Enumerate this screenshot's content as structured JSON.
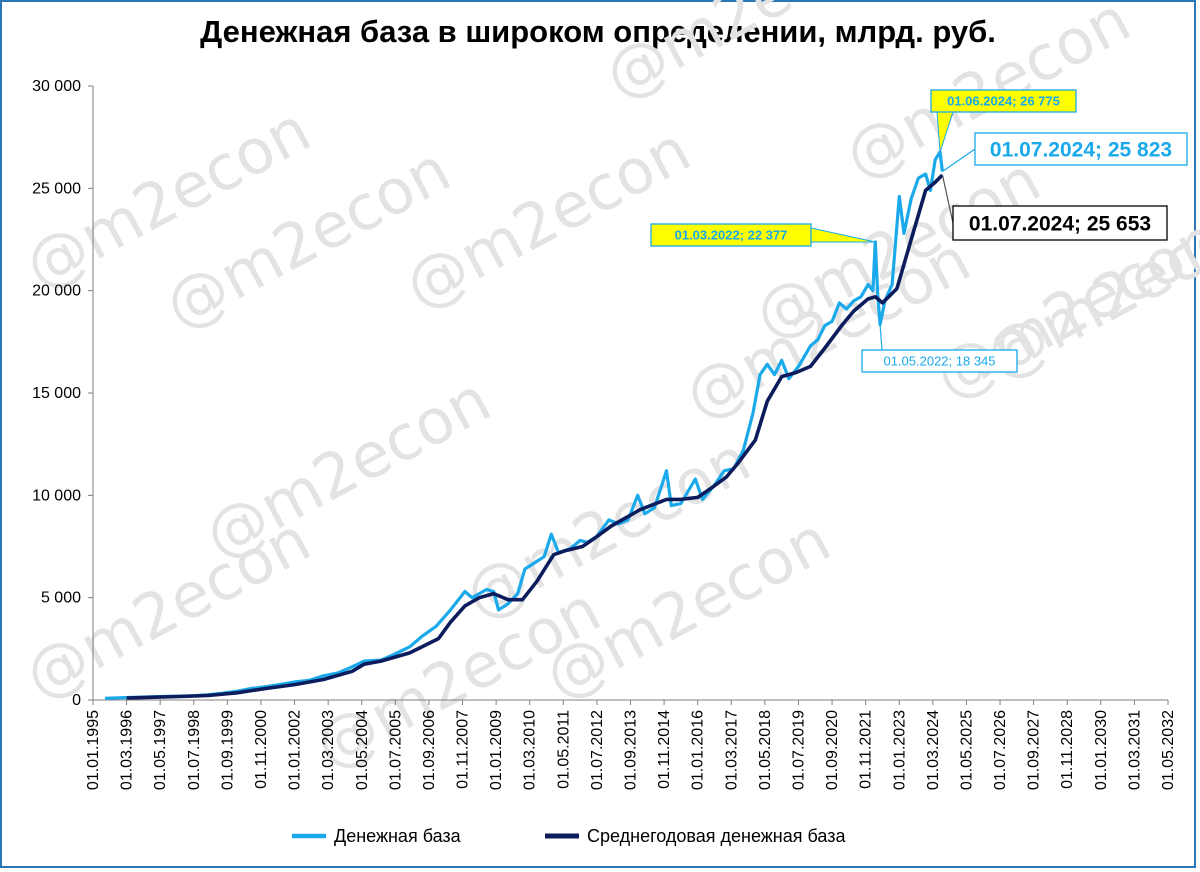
{
  "chart_data": {
    "type": "line",
    "title": "Денежная база в широком определении, млрд. руб.",
    "watermark": "@m2econ",
    "ylim": [
      0,
      30000
    ],
    "y_ticks": [
      "0",
      "5 000",
      "10 000",
      "15 000",
      "20 000",
      "25 000",
      "30 000"
    ],
    "x_ticks": [
      "01.01.1995",
      "01.03.1996",
      "01.05.1997",
      "01.07.1998",
      "01.09.1999",
      "01.11.2000",
      "01.01.2002",
      "01.03.2003",
      "01.05.2004",
      "01.07.2005",
      "01.09.2006",
      "01.11.2007",
      "01.01.2009",
      "01.03.2010",
      "01.05.2011",
      "01.07.2012",
      "01.09.2013",
      "01.11.2014",
      "01.01.2016",
      "01.03.2017",
      "01.05.2018",
      "01.07.2019",
      "01.09.2020",
      "01.11.2021",
      "01.01.2023",
      "01.03.2024",
      "01.05.2025",
      "01.07.2026",
      "01.09.2027",
      "01.11.2028",
      "01.01.2030",
      "01.03.2031",
      "01.05.2032"
    ],
    "x_range": [
      "1995-01-01",
      "2032-05-01"
    ],
    "grid": false,
    "legend_position": "bottom",
    "colors": {
      "base": "#1aa9ea",
      "average": "#0c1c5c",
      "highlight": "#ffff00"
    },
    "series": [
      {
        "name": "Денежная база",
        "points": [
          [
            "1995-06-01",
            80
          ],
          [
            "1996-01-01",
            110
          ],
          [
            "1996-06-01",
            130
          ],
          [
            "1997-01-01",
            150
          ],
          [
            "1997-06-01",
            170
          ],
          [
            "1998-01-01",
            190
          ],
          [
            "1998-07-01",
            210
          ],
          [
            "1999-01-01",
            260
          ],
          [
            "1999-07-01",
            330
          ],
          [
            "2000-01-01",
            430
          ],
          [
            "2000-07-01",
            560
          ],
          [
            "2001-01-01",
            650
          ],
          [
            "2001-07-01",
            760
          ],
          [
            "2002-01-01",
            880
          ],
          [
            "2002-07-01",
            960
          ],
          [
            "2003-01-01",
            1180
          ],
          [
            "2003-07-01",
            1320
          ],
          [
            "2004-01-01",
            1620
          ],
          [
            "2004-06-01",
            1900
          ],
          [
            "2005-01-01",
            1950
          ],
          [
            "2005-06-01",
            2200
          ],
          [
            "2006-01-01",
            2600
          ],
          [
            "2006-06-01",
            3100
          ],
          [
            "2006-12-01",
            3600
          ],
          [
            "2007-06-01",
            4400
          ],
          [
            "2007-12-01",
            5300
          ],
          [
            "2008-03-01",
            5000
          ],
          [
            "2008-06-01",
            5200
          ],
          [
            "2008-09-01",
            5400
          ],
          [
            "2008-12-01",
            5300
          ],
          [
            "2009-02-01",
            4400
          ],
          [
            "2009-06-01",
            4700
          ],
          [
            "2009-10-01",
            5200
          ],
          [
            "2010-01-01",
            6400
          ],
          [
            "2010-05-01",
            6700
          ],
          [
            "2010-09-01",
            7000
          ],
          [
            "2010-12-01",
            8100
          ],
          [
            "2011-03-01",
            7200
          ],
          [
            "2011-08-01",
            7400
          ],
          [
            "2011-12-01",
            7800
          ],
          [
            "2012-03-01",
            7700
          ],
          [
            "2012-07-01",
            8000
          ],
          [
            "2012-12-01",
            8800
          ],
          [
            "2013-04-01",
            8600
          ],
          [
            "2013-08-01",
            8800
          ],
          [
            "2013-12-01",
            10000
          ],
          [
            "2014-03-01",
            9100
          ],
          [
            "2014-07-01",
            9400
          ],
          [
            "2014-12-01",
            11200
          ],
          [
            "2015-02-01",
            9500
          ],
          [
            "2015-06-01",
            9600
          ],
          [
            "2015-12-01",
            10800
          ],
          [
            "2016-03-01",
            9800
          ],
          [
            "2016-08-01",
            10500
          ],
          [
            "2016-12-01",
            11200
          ],
          [
            "2017-04-01",
            11300
          ],
          [
            "2017-08-01",
            12200
          ],
          [
            "2017-12-01",
            14000
          ],
          [
            "2018-03-01",
            15900
          ],
          [
            "2018-06-01",
            16400
          ],
          [
            "2018-09-01",
            15900
          ],
          [
            "2018-12-01",
            16600
          ],
          [
            "2019-03-01",
            15700
          ],
          [
            "2019-07-01",
            16300
          ],
          [
            "2019-12-01",
            17300
          ],
          [
            "2020-03-01",
            17600
          ],
          [
            "2020-06-01",
            18300
          ],
          [
            "2020-09-01",
            18500
          ],
          [
            "2020-12-01",
            19400
          ],
          [
            "2021-03-01",
            19100
          ],
          [
            "2021-06-01",
            19500
          ],
          [
            "2021-09-01",
            19700
          ],
          [
            "2021-12-01",
            20300
          ],
          [
            "2022-02-01",
            20000
          ],
          [
            "2022-03-01",
            22377
          ],
          [
            "2022-04-01",
            19800
          ],
          [
            "2022-05-01",
            18345
          ],
          [
            "2022-07-01",
            19500
          ],
          [
            "2022-10-01",
            20300
          ],
          [
            "2023-01-01",
            24600
          ],
          [
            "2023-03-01",
            22800
          ],
          [
            "2023-06-01",
            24500
          ],
          [
            "2023-09-01",
            25500
          ],
          [
            "2023-12-01",
            25700
          ],
          [
            "2024-02-01",
            24900
          ],
          [
            "2024-04-01",
            26400
          ],
          [
            "2024-06-01",
            26775
          ],
          [
            "2024-07-01",
            25823
          ]
        ]
      },
      {
        "name": "Среднегодовая денежная база",
        "points": [
          [
            "1996-03-01",
            100
          ],
          [
            "1997-01-01",
            130
          ],
          [
            "1998-01-01",
            170
          ],
          [
            "1999-01-01",
            220
          ],
          [
            "2000-01-01",
            350
          ],
          [
            "2001-01-01",
            560
          ],
          [
            "2002-01-01",
            750
          ],
          [
            "2003-01-01",
            1000
          ],
          [
            "2004-01-01",
            1400
          ],
          [
            "2004-06-01",
            1750
          ],
          [
            "2005-01-01",
            1900
          ],
          [
            "2006-01-01",
            2300
          ],
          [
            "2007-01-01",
            3000
          ],
          [
            "2007-06-01",
            3800
          ],
          [
            "2007-12-01",
            4600
          ],
          [
            "2008-06-01",
            5000
          ],
          [
            "2008-12-01",
            5200
          ],
          [
            "2009-06-01",
            4900
          ],
          [
            "2009-12-01",
            4900
          ],
          [
            "2010-06-01",
            5800
          ],
          [
            "2011-01-01",
            7100
          ],
          [
            "2011-06-01",
            7300
          ],
          [
            "2012-01-01",
            7500
          ],
          [
            "2012-06-01",
            7900
          ],
          [
            "2013-01-01",
            8500
          ],
          [
            "2014-01-01",
            9300
          ],
          [
            "2014-12-01",
            9800
          ],
          [
            "2015-06-01",
            9800
          ],
          [
            "2016-01-01",
            9900
          ],
          [
            "2016-06-01",
            10300
          ],
          [
            "2017-01-01",
            10900
          ],
          [
            "2017-06-01",
            11600
          ],
          [
            "2018-01-01",
            12700
          ],
          [
            "2018-06-01",
            14600
          ],
          [
            "2018-12-01",
            15800
          ],
          [
            "2019-06-01",
            16000
          ],
          [
            "2019-12-01",
            16300
          ],
          [
            "2020-06-01",
            17200
          ],
          [
            "2021-01-01",
            18300
          ],
          [
            "2021-06-01",
            19000
          ],
          [
            "2021-12-01",
            19600
          ],
          [
            "2022-03-01",
            19700
          ],
          [
            "2022-06-01",
            19400
          ],
          [
            "2022-12-01",
            20100
          ],
          [
            "2023-06-01",
            22500
          ],
          [
            "2023-12-01",
            24900
          ],
          [
            "2024-04-01",
            25300
          ],
          [
            "2024-07-01",
            25653
          ]
        ]
      }
    ],
    "annotations": [
      {
        "text": "01.06.2024;  26 775",
        "date": "2024-06-01",
        "value": 26775,
        "style": "yellow"
      },
      {
        "text": "01.07.2024;  25 823",
        "date": "2024-07-01",
        "value": 25823,
        "style": "blue-large"
      },
      {
        "text": "01.07.2024;  25 653",
        "date": "2024-07-01",
        "value": 25653,
        "style": "black-large"
      },
      {
        "text": "01.03.2022;  22 377",
        "date": "2022-03-01",
        "value": 22377,
        "style": "yellow"
      },
      {
        "text": "01.05.2022;  18 345",
        "date": "2022-05-01",
        "value": 18345,
        "style": "blue-small"
      }
    ]
  }
}
